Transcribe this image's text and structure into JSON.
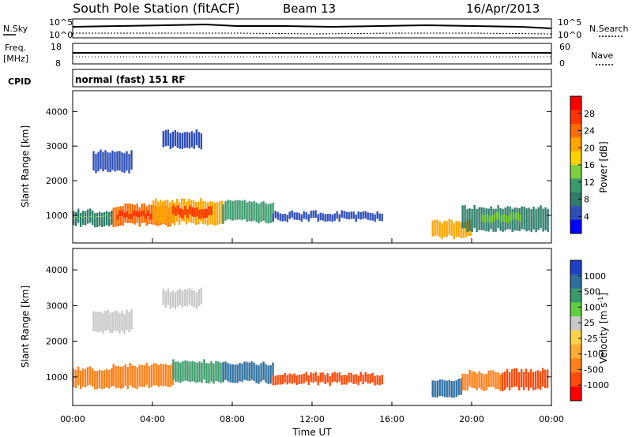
{
  "header": {
    "station": "South Pole Station (fitACF)",
    "beam": "Beam 13",
    "date": "16/Apr/2013"
  },
  "panels": {
    "noise": {
      "left_label": "N.Sky",
      "right_label": "N.Search",
      "left_ticks": [
        "10^5",
        "10^0"
      ],
      "right_ticks": [
        "10^5",
        "10^0"
      ]
    },
    "freq": {
      "left_label_1": "Freq.",
      "left_label_2": "[MHz]",
      "right_label": "Nave",
      "left_ticks": [
        "18",
        "8"
      ],
      "right_ticks": [
        "60",
        "0"
      ]
    },
    "cpid": {
      "label": "CPID",
      "value": "normal (fast) 151 RF"
    }
  },
  "colorbars": {
    "power": {
      "label": "Power [dB]",
      "ticks": [
        "28",
        "24",
        "20",
        "16",
        "12",
        "8",
        "4"
      ],
      "colors": [
        "#ff0000",
        "#ff3300",
        "#ff6a00",
        "#ffa500",
        "#ffd000",
        "#7fcf3f",
        "#3a9a6a",
        "#2e7d6a",
        "#2f4fb8",
        "#0000ff"
      ]
    },
    "velocity": {
      "label": "Velocity [m s",
      "label_sup": "-1",
      "label_end": "]",
      "ticks": [
        "1000",
        "500",
        "100",
        "25",
        "-25",
        "-100",
        "-500",
        "-1000"
      ],
      "colors": [
        "#1e3fc8",
        "#2e6fa0",
        "#3a9a6a",
        "#5fcf3f",
        "#c8c8c8",
        "#ffd24a",
        "#ffaa33",
        "#ff7f1a",
        "#ff4a0a",
        "#ff0000"
      ]
    }
  },
  "chart_data": [
    {
      "type": "heatmap",
      "name": "power",
      "ylabel": "Slant Range [km]",
      "ylim": [
        200,
        4600
      ],
      "yticks": [
        "1000",
        "2000",
        "3000",
        "4000"
      ],
      "xlim_hours": [
        0,
        24
      ],
      "cells": [
        {
          "t0": 0.0,
          "t1": 2.0,
          "r0": 650,
          "r1": 1200,
          "v": 8
        },
        {
          "t0": 0.0,
          "t1": 2.0,
          "r0": 900,
          "r1": 1050,
          "v": 16
        },
        {
          "t0": 2.0,
          "t1": 5.0,
          "r0": 650,
          "r1": 1350,
          "v": 24
        },
        {
          "t0": 2.2,
          "t1": 4.0,
          "r0": 850,
          "r1": 1150,
          "v": 28
        },
        {
          "t0": 4.0,
          "t1": 7.5,
          "r0": 700,
          "r1": 1500,
          "v": 20
        },
        {
          "t0": 5.0,
          "t1": 7.0,
          "r0": 900,
          "r1": 1300,
          "v": 28
        },
        {
          "t0": 7.5,
          "t1": 10.0,
          "r0": 750,
          "r1": 1450,
          "v": 12
        },
        {
          "t0": 10.0,
          "t1": 15.5,
          "r0": 800,
          "r1": 1150,
          "v": 6
        },
        {
          "t0": 1.0,
          "t1": 3.0,
          "r0": 2200,
          "r1": 2900,
          "v": 6
        },
        {
          "t0": 4.5,
          "t1": 6.5,
          "r0": 2900,
          "r1": 3500,
          "v": 6
        },
        {
          "t0": 18.0,
          "t1": 20.0,
          "r0": 300,
          "r1": 900,
          "v": 20
        },
        {
          "t0": 19.5,
          "t1": 23.8,
          "r0": 500,
          "r1": 1300,
          "v": 8
        },
        {
          "t0": 20.5,
          "t1": 22.5,
          "r0": 750,
          "r1": 1100,
          "v": 14
        }
      ]
    },
    {
      "type": "heatmap",
      "name": "velocity",
      "ylabel": "Slant Range [km]",
      "ylim": [
        200,
        4600
      ],
      "yticks": [
        "1000",
        "2000",
        "3000",
        "4000"
      ],
      "xlabel": "Time UT",
      "xticks": [
        "00:00",
        "04:00",
        "08:00",
        "12:00",
        "16:00",
        "20:00",
        "00:00"
      ],
      "xlim_hours": [
        0,
        24
      ],
      "cells": [
        {
          "t0": 0.0,
          "t1": 2.0,
          "r0": 650,
          "r1": 1300,
          "v": -300
        },
        {
          "t0": 2.0,
          "t1": 5.0,
          "r0": 650,
          "r1": 1400,
          "v": -400
        },
        {
          "t0": 5.0,
          "t1": 7.5,
          "r0": 800,
          "r1": 1500,
          "v": 80
        },
        {
          "t0": 7.5,
          "t1": 10.0,
          "r0": 800,
          "r1": 1450,
          "v": 300
        },
        {
          "t0": 10.0,
          "t1": 15.5,
          "r0": 750,
          "r1": 1150,
          "v": -500
        },
        {
          "t0": 1.0,
          "t1": 3.0,
          "r0": 2200,
          "r1": 2900,
          "v": 0
        },
        {
          "t0": 4.5,
          "t1": 6.5,
          "r0": 2900,
          "r1": 3500,
          "v": 0
        },
        {
          "t0": 18.0,
          "t1": 19.5,
          "r0": 400,
          "r1": 1000,
          "v": 700
        },
        {
          "t0": 19.5,
          "t1": 21.5,
          "r0": 600,
          "r1": 1200,
          "v": -300
        },
        {
          "t0": 21.5,
          "t1": 23.8,
          "r0": 600,
          "r1": 1250,
          "v": -700
        }
      ]
    }
  ]
}
